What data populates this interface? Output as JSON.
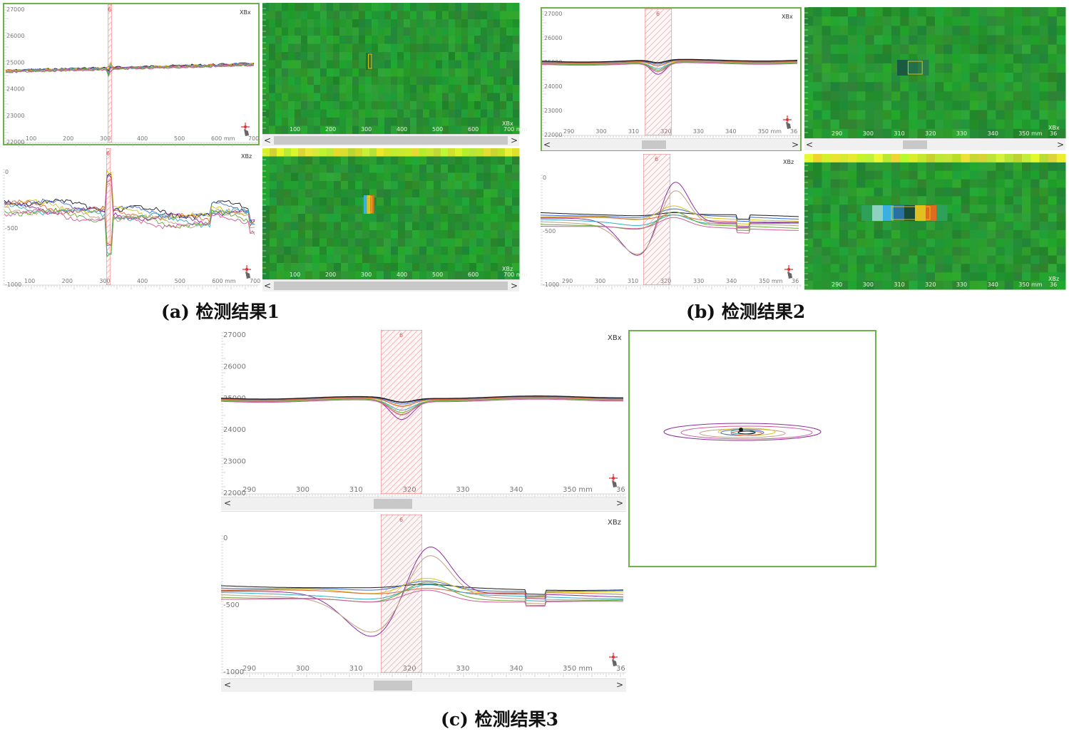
{
  "captions": {
    "a": "(a) 检测结果1",
    "b": "(b) 检测结果2",
    "c": "(c) 检测结果3"
  },
  "channels": {
    "xbx": "XBx",
    "xbz": "XBz"
  },
  "marker_label": "6",
  "axis_unit": "mm",
  "scroll": {
    "left": "<",
    "right": ">"
  },
  "panel_a": {
    "xticks": [
      "100",
      "200",
      "300",
      "400",
      "500",
      "600 mm",
      "700"
    ],
    "yticks_xbx": [
      "27000",
      "26000",
      "25000",
      "24000",
      "23000",
      "22000"
    ],
    "yticks_xbz": [
      "0",
      "-500",
      "-1000"
    ],
    "heat_xticks": [
      "100",
      "200",
      "300",
      "400",
      "500",
      "600",
      "700 mm"
    ]
  },
  "panel_b": {
    "xticks": [
      "290",
      "300",
      "310",
      "320",
      "330",
      "340",
      "350 mm",
      "36"
    ],
    "yticks_xbx": [
      "27000",
      "26000",
      "25000",
      "24000",
      "23000",
      "22000"
    ],
    "yticks_xbz": [
      "0",
      "-500",
      "-1000"
    ],
    "heat_xticks": [
      "290",
      "300",
      "310",
      "320",
      "330",
      "340",
      "350 mm",
      "36"
    ]
  },
  "panel_c": {
    "xticks": [
      "290",
      "300",
      "310",
      "320",
      "330",
      "340",
      "350 mm",
      "36"
    ],
    "yticks_xbx": [
      "27000",
      "26000",
      "25000",
      "24000",
      "23000",
      "22000"
    ],
    "yticks_xbz": [
      "0",
      "-500",
      "-1000"
    ]
  },
  "colors": {
    "frame": "#6fb24a",
    "marker": "#e85050",
    "heat_base": "#2e9a3a",
    "traces": [
      "#1a1a1a",
      "#3a6fd8",
      "#d6c21a",
      "#e0663a",
      "#8b2fa0",
      "#2fb0c0",
      "#c0a080",
      "#66aa33",
      "#d05a9a"
    ]
  }
}
